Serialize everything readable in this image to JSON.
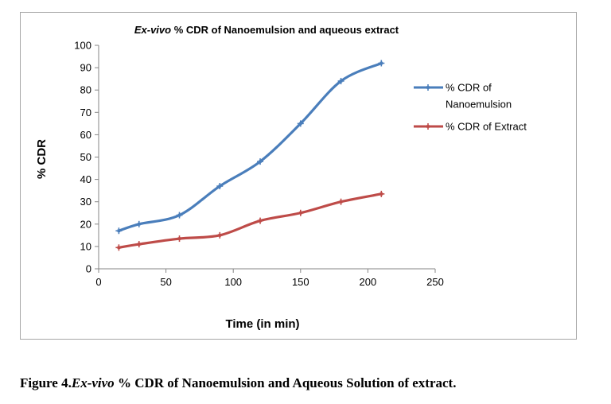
{
  "chart_data": {
    "type": "line",
    "title_italic": "Ex-vivo",
    "title_rest": " % CDR of Nanoemulsion and aqueous extract",
    "xlabel": "Time  (in min)",
    "ylabel": "% CDR",
    "xlim": [
      0,
      250
    ],
    "xticks": [
      0,
      50,
      100,
      150,
      200,
      250
    ],
    "ylim": [
      0,
      100
    ],
    "yticks": [
      0,
      10,
      20,
      30,
      40,
      50,
      60,
      70,
      80,
      90,
      100
    ],
    "grid": false,
    "legend_position": "right",
    "series": [
      {
        "name_lines": [
          "% CDR of",
          "Nanoemulsion"
        ],
        "color": "#4a7ebb",
        "x": [
          15,
          30,
          60,
          90,
          120,
          150,
          180,
          210
        ],
        "y": [
          17,
          20,
          24,
          37,
          48,
          65,
          84,
          92
        ]
      },
      {
        "name_lines": [
          "% CDR of Extract"
        ],
        "color": "#be4b48",
        "x": [
          15,
          30,
          60,
          90,
          120,
          150,
          180,
          210
        ],
        "y": [
          9.5,
          11,
          13.5,
          15,
          21.5,
          25,
          30,
          33.5
        ]
      }
    ]
  },
  "caption": {
    "prefix": "Figure 4.",
    "italic": "Ex-vivo",
    "rest": " % CDR of Nanoemulsion and Aqueous Solution of extract."
  }
}
